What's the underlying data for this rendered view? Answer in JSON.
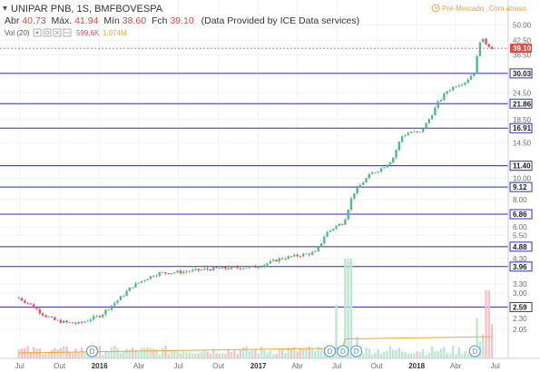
{
  "header": {
    "title": "UNIPAR PNB, 1S, BMFBOVESPA",
    "ohlc": [
      {
        "label": "Abr",
        "value": "40.73"
      },
      {
        "label": "Máx.",
        "value": "41.94"
      },
      {
        "label": "Mín",
        "value": "38.60"
      },
      {
        "label": "Fch",
        "value": "39.10"
      }
    ],
    "provider": "(Data Provided by ICE Data services)",
    "status": "Pré-Mercado",
    "status_note": "Com atraso"
  },
  "volume_legend": {
    "label": "Vol (20)",
    "value": "599.6K",
    "ma_value": "1.074M"
  },
  "colors": {
    "up": "#53b987",
    "down": "#eb4d5c",
    "hline": "#2a2ad6",
    "price_tag": "#e8463c",
    "status": "#f0a030",
    "vol_ma": "#f5a623"
  },
  "chart_data": {
    "type": "candlestick",
    "scale": "log",
    "y_ticks": [
      "50.00",
      "42.50",
      "36.50",
      "30.03",
      "24.50",
      "21.86",
      "18.50",
      "16.91",
      "14.50",
      "11.40",
      "10.00",
      "9.12",
      "8.00",
      "6.86",
      "6.00",
      "5.50",
      "4.88",
      "4.30",
      "3.96",
      "3.30",
      "3.00",
      "2.59",
      "2.30",
      "2.05"
    ],
    "x_ticks": [
      "Jul",
      "Out",
      "2016",
      "Abr",
      "Jul",
      "Out",
      "2017",
      "Abr",
      "Jul",
      "Out",
      "2018",
      "Abr",
      "Jul"
    ],
    "horizontal_lines": [
      30.03,
      21.86,
      16.91,
      11.4,
      9.12,
      6.86,
      4.88,
      3.96,
      2.59
    ],
    "last_price": "39.10",
    "dividend_marks": [
      "2015-12",
      "2017-06",
      "2017-07",
      "2017-08",
      "2018-05"
    ],
    "dividend_label": "D",
    "series": [
      {
        "date": "2015-06-29",
        "close": 2.85
      },
      {
        "date": "2015-07-27",
        "close": 2.65
      },
      {
        "date": "2015-08-24",
        "close": 2.4
      },
      {
        "date": "2015-09-21",
        "close": 2.25
      },
      {
        "date": "2015-10-19",
        "close": 2.2
      },
      {
        "date": "2015-11-16",
        "close": 2.18
      },
      {
        "date": "2015-12-14",
        "close": 2.3
      },
      {
        "date": "2016-01-04",
        "close": 2.38
      },
      {
        "date": "2016-01-25",
        "close": 2.6
      },
      {
        "date": "2016-02-22",
        "close": 2.9
      },
      {
        "date": "2016-03-14",
        "close": 3.2
      },
      {
        "date": "2016-04-18",
        "close": 3.5
      },
      {
        "date": "2016-05-16",
        "close": 3.7
      },
      {
        "date": "2016-06-13",
        "close": 3.72
      },
      {
        "date": "2016-07-11",
        "close": 3.75
      },
      {
        "date": "2016-08-08",
        "close": 3.8
      },
      {
        "date": "2016-09-05",
        "close": 3.85
      },
      {
        "date": "2016-10-03",
        "close": 3.88
      },
      {
        "date": "2016-10-31",
        "close": 3.9
      },
      {
        "date": "2016-11-28",
        "close": 3.92
      },
      {
        "date": "2016-12-26",
        "close": 3.95
      },
      {
        "date": "2017-01-23",
        "close": 4.1
      },
      {
        "date": "2017-02-20",
        "close": 4.3
      },
      {
        "date": "2017-03-20",
        "close": 4.4
      },
      {
        "date": "2017-04-17",
        "close": 4.5
      },
      {
        "date": "2017-05-15",
        "close": 4.6
      },
      {
        "date": "2017-06-05",
        "close": 5.6
      },
      {
        "date": "2017-06-26",
        "close": 6.0
      },
      {
        "date": "2017-07-17",
        "close": 6.3
      },
      {
        "date": "2017-08-07",
        "close": 8.5
      },
      {
        "date": "2017-08-28",
        "close": 9.5
      },
      {
        "date": "2017-09-18",
        "close": 10.5
      },
      {
        "date": "2017-10-09",
        "close": 11.0
      },
      {
        "date": "2017-11-06",
        "close": 12.2
      },
      {
        "date": "2017-11-27",
        "close": 15.5
      },
      {
        "date": "2017-12-18",
        "close": 16.3
      },
      {
        "date": "2018-01-08",
        "close": 16.0
      },
      {
        "date": "2018-01-29",
        "close": 18.5
      },
      {
        "date": "2018-02-19",
        "close": 22.0
      },
      {
        "date": "2018-03-12",
        "close": 25.0
      },
      {
        "date": "2018-04-02",
        "close": 26.5
      },
      {
        "date": "2018-04-23",
        "close": 27.5
      },
      {
        "date": "2018-05-14",
        "close": 30.5
      },
      {
        "date": "2018-05-28",
        "close": 43.5
      },
      {
        "date": "2018-06-11",
        "close": 41.0
      },
      {
        "date": "2018-06-25",
        "close": 39.1
      }
    ]
  }
}
